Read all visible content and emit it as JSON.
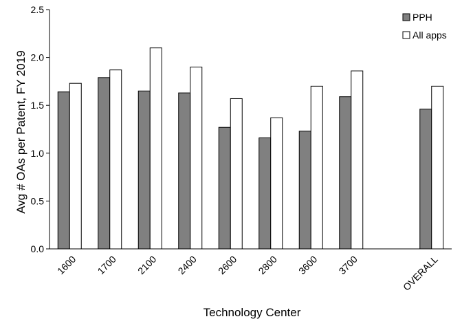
{
  "chart_data": {
    "type": "bar",
    "title": "",
    "xlabel": "Technology Center",
    "ylabel": "Avg # OAs per Patent, FY 2019",
    "ylim": [
      0,
      2.5
    ],
    "yticks": [
      "0.0",
      "0.5",
      "1.0",
      "1.5",
      "2.0",
      "2.5"
    ],
    "grid": false,
    "legend_position": "top-right",
    "categories": [
      "1600",
      "1700",
      "2100",
      "2400",
      "2600",
      "2800",
      "3600",
      "3700",
      "",
      "OVERALL"
    ],
    "series": [
      {
        "name": "PPH",
        "color": "#808080",
        "values": [
          1.64,
          1.79,
          1.65,
          1.63,
          1.27,
          1.16,
          1.23,
          1.59,
          null,
          1.46
        ]
      },
      {
        "name": "All apps",
        "color": "#ffffff",
        "values": [
          1.73,
          1.87,
          2.1,
          1.9,
          1.57,
          1.37,
          1.7,
          1.86,
          null,
          1.7
        ]
      }
    ]
  }
}
